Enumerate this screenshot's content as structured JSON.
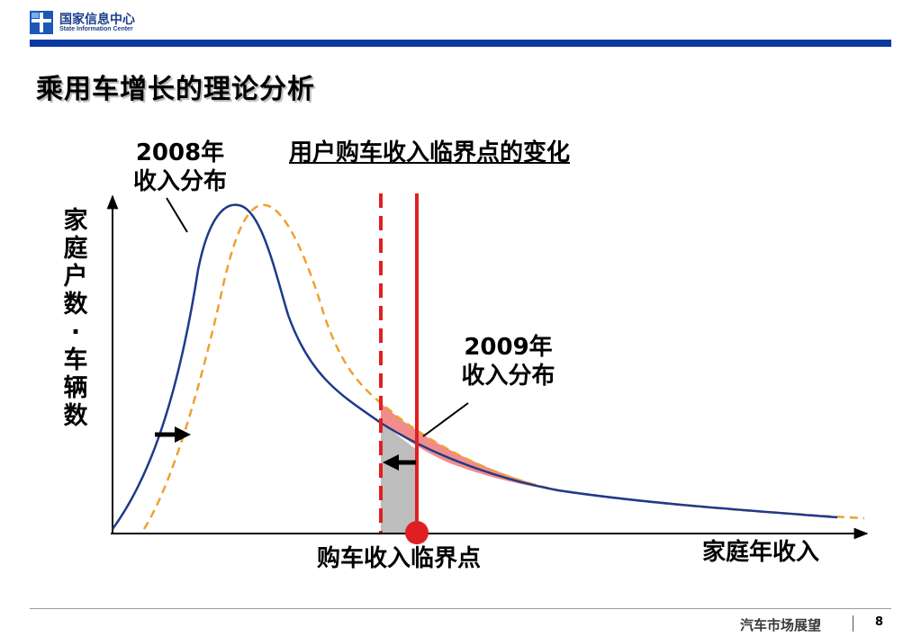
{
  "header": {
    "logo_cn": "国家信息中心",
    "logo_en": "State Information Center",
    "brand_color": "#0b3a9e"
  },
  "title": "乘用车增长的理论分析",
  "diagram": {
    "heading": "用户购车收入临界点的变化",
    "label_2008": "2008年收入分布",
    "label_2009": "2009年收入分布",
    "y_axis_label": "家庭户数·车辆数",
    "x_axis_label": "家庭年收入",
    "threshold_label": "购车收入临界点",
    "colors": {
      "curve_2008": "#1f3a8a",
      "curve_2009": "#f0a030",
      "threshold": "#e02020",
      "area_gain": "#f08080",
      "area_gray": "#bdbdbd"
    }
  },
  "footer": {
    "text": "汽车市场展望",
    "page": "8"
  }
}
